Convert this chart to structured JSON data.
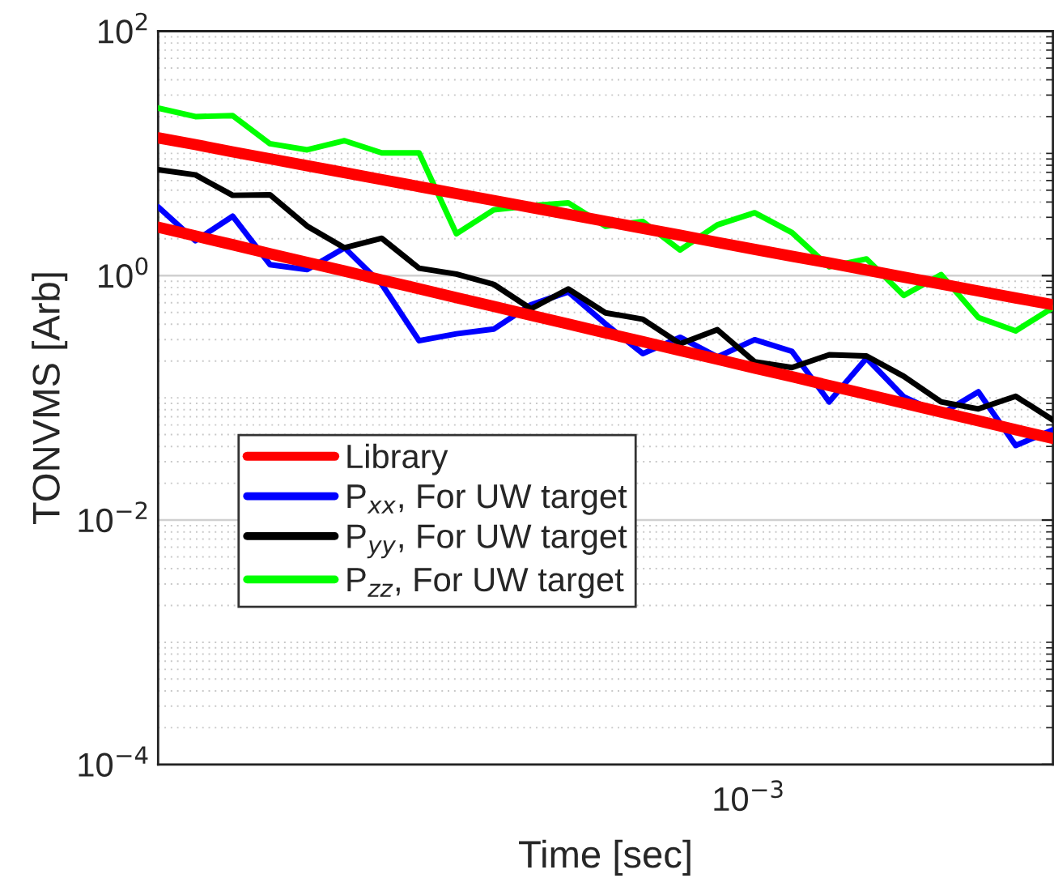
{
  "chart_data": {
    "type": "line",
    "xlabel": "Time [sec]",
    "ylabel": "TONVMS [Arb]",
    "log": "y",
    "grid": true,
    "legend": "lower left",
    "line_style": "solid",
    "marker": "none",
    "annotations": [
      "10$^{−3}$"
    ],
    "categories": [
      null,
      null,
      null,
      null,
      null,
      null,
      null,
      null,
      null,
      null,
      null,
      null,
      null,
      null,
      null,
      null,
      null,
      null,
      null,
      null,
      null,
      null,
      null,
      null,
      null
    ],
    "ylim": [
      0.0001,
      100
    ],
    "yticks": [
      {
        "value": 0.0001,
        "label": "10$^{−4}$"
      },
      {
        "value": 0.01,
        "label": "10$^{−2}$"
      },
      {
        "value": 1,
        "label": "10$^{0}$"
      },
      {
        "value": 100,
        "label": "10$^{2}$"
      }
    ],
    "series": [
      {
        "name": "Library",
        "color": "#ff0000",
        "values": [
          13.4,
          11.8,
          10.3,
          9.04,
          7.93,
          6.96,
          6.1,
          5.35,
          4.69,
          4.12,
          3.61,
          3.17,
          2.78,
          2.44,
          2.14,
          1.87,
          1.64,
          1.44,
          1.27,
          1.11,
          0.973,
          0.853,
          0.748,
          0.656,
          0.578
        ]
      },
      {
        "color": "#ff0000",
        "values": [
          2.49,
          2.11,
          1.79,
          1.51,
          1.28,
          1.09,
          0.921,
          0.78,
          0.661,
          0.56,
          0.474,
          0.402,
          0.34,
          0.288,
          0.244,
          0.207,
          0.175,
          0.149,
          0.126,
          0.107,
          0.0903,
          0.0765,
          0.0648,
          0.0549,
          0.0465
        ]
      },
      {
        "name": "P$_{xx}$, For UW target",
        "color": "#0000ff",
        "values": [
          3.65,
          1.93,
          3.06,
          1.23,
          1.12,
          1.69,
          0.849,
          0.293,
          0.334,
          0.365,
          0.578,
          0.736,
          0.402,
          0.23,
          0.313,
          0.216,
          0.299,
          0.24,
          0.0927,
          0.211,
          0.102,
          0.0736,
          0.112,
          0.0407,
          0.0547
        ]
      },
      {
        "name": "P$_{yy}$, For UW target",
        "color": "#000000",
        "values": [
          7.36,
          6.67,
          4.54,
          4.59,
          2.54,
          1.69,
          2.02,
          1.15,
          1.03,
          0.849,
          0.535,
          0.777,
          0.496,
          0.44,
          0.277,
          0.361,
          0.197,
          0.177,
          0.225,
          0.22,
          0.15,
          0.0927,
          0.0812,
          0.103,
          0.0659
        ]
      },
      {
        "name": "P$_{zz}$, For UW target",
        "color": "#00ff00",
        "values": [
          23.5,
          20.0,
          20.4,
          12.0,
          10.7,
          12.7,
          10.1,
          10.1,
          2.2,
          3.45,
          3.73,
          3.94,
          2.54,
          2.77,
          1.62,
          2.6,
          3.27,
          2.25,
          1.18,
          1.37,
          0.689,
          1.02,
          0.454,
          0.353,
          0.547
        ]
      }
    ]
  }
}
